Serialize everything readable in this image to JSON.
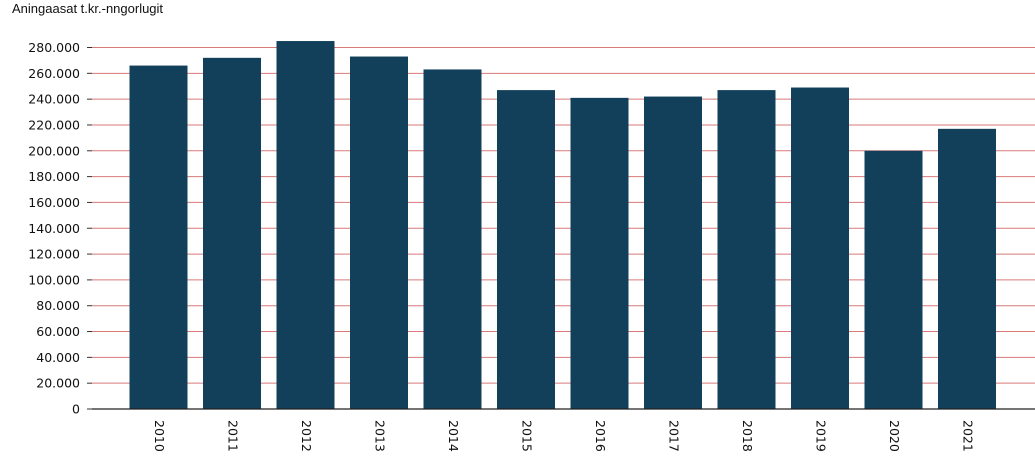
{
  "chart_data": {
    "type": "bar",
    "title": "",
    "ylabel": "Aningaasat t.kr.-nngorlugit",
    "xlabel": "",
    "categories": [
      "2010",
      "2011",
      "2012",
      "2013",
      "2014",
      "2015",
      "2016",
      "2017",
      "2018",
      "2019",
      "2020",
      "2021"
    ],
    "values": [
      266000,
      272000,
      285000,
      273000,
      263000,
      247000,
      241000,
      242000,
      247000,
      249000,
      200000,
      217000
    ],
    "yticks": [
      0,
      20000,
      40000,
      60000,
      80000,
      100000,
      120000,
      140000,
      160000,
      180000,
      200000,
      220000,
      240000,
      260000,
      280000
    ],
    "ytick_labels": [
      "0",
      "20.000",
      "40.000",
      "60.000",
      "80.000",
      "100.000",
      "120.000",
      "140.000",
      "160.000",
      "180.000",
      "200.000",
      "220.000",
      "240.000",
      "260.000",
      "280.000"
    ],
    "ylim": [
      0,
      285000
    ],
    "grid": true,
    "bar_color": "#123f5a",
    "grid_color": "#d97a7a"
  }
}
